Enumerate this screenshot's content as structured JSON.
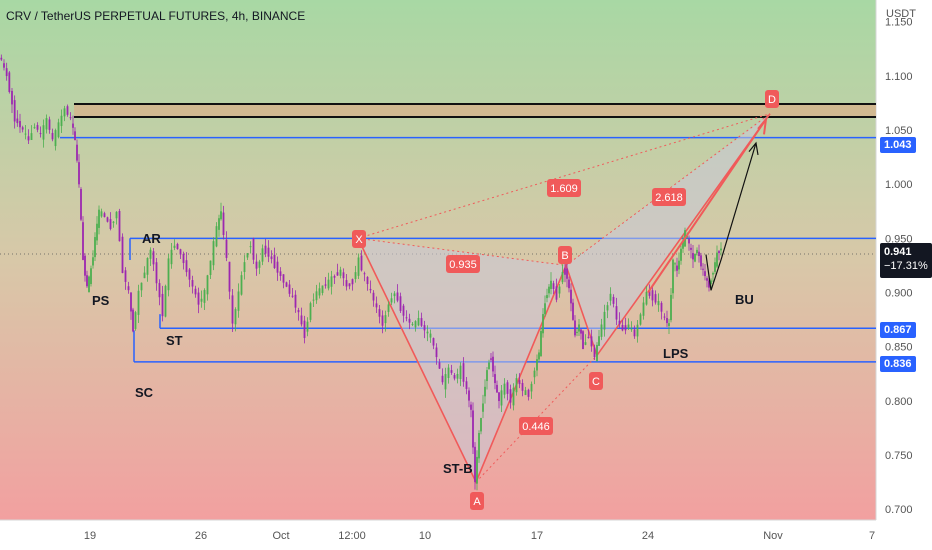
{
  "header": {
    "title": "CRV / TetherUS PERPETUAL FUTURES, 4h, BINANCE",
    "currency": "USDT"
  },
  "price_badges": {
    "level_1043": "1.043",
    "last_price": "0.941",
    "change": "−17.31%",
    "level_867": "0.867",
    "level_836": "0.836"
  },
  "colors": {
    "bg_top": "#a8d8a4",
    "bg_bottom": "#f2a0a0",
    "level_line": "#2962ff",
    "zone_fill": "#d8b08a",
    "pattern_line": "#f05a5a",
    "pattern_fill": "#c9c9d9",
    "candle_up": "#4caf50",
    "candle_down": "#9c27b0"
  },
  "annotations": {
    "wyckoff": [
      "PS",
      "AR",
      "ST",
      "SC",
      "ST-B",
      "LPS",
      "BU"
    ],
    "pattern_points": [
      "X",
      "A",
      "B",
      "C",
      "D"
    ],
    "ratios": [
      "0.935",
      "1.609",
      "2.618",
      "0.446"
    ]
  },
  "chart_data": {
    "type": "candlestick",
    "symbol": "CRV / TetherUS PERPETUAL FUTURES",
    "interval": "4h",
    "exchange": "BINANCE",
    "y_axis": {
      "unit": "USDT",
      "ylim": [
        0.69,
        1.17
      ],
      "tick_labels": [
        "1.150",
        "1.100",
        "1.050",
        "1.000",
        "0.950",
        "0.900",
        "0.850",
        "0.800",
        "0.750",
        "0.700"
      ]
    },
    "x_axis": {
      "tick_labels": [
        "19",
        "26",
        "Oct",
        "12:00",
        "10",
        "17",
        "24",
        "Nov",
        "7"
      ]
    },
    "horizontal_levels": [
      1.043,
      0.95,
      0.867,
      0.836
    ],
    "resistance_zone": [
      1.062,
      1.074
    ],
    "price_path": [
      [
        0,
        1.12
      ],
      [
        8,
        1.1
      ],
      [
        16,
        1.06
      ],
      [
        24,
        1.05
      ],
      [
        30,
        1.04
      ],
      [
        36,
        1.055
      ],
      [
        42,
        1.045
      ],
      [
        48,
        1.06
      ],
      [
        54,
        1.04
      ],
      [
        60,
        1.055
      ],
      [
        66,
        1.07
      ],
      [
        72,
        1.06
      ],
      [
        76,
        1.04
      ],
      [
        80,
        1.0
      ],
      [
        84,
        0.93
      ],
      [
        88,
        0.905
      ],
      [
        92,
        0.92
      ],
      [
        96,
        0.95
      ],
      [
        100,
        0.975
      ],
      [
        106,
        0.97
      ],
      [
        112,
        0.96
      ],
      [
        118,
        0.975
      ],
      [
        124,
        0.92
      ],
      [
        130,
        0.9
      ],
      [
        134,
        0.865
      ],
      [
        140,
        0.9
      ],
      [
        146,
        0.92
      ],
      [
        152,
        0.94
      ],
      [
        158,
        0.91
      ],
      [
        164,
        0.88
      ],
      [
        170,
        0.93
      ],
      [
        176,
        0.945
      ],
      [
        182,
        0.935
      ],
      [
        188,
        0.92
      ],
      [
        194,
        0.905
      ],
      [
        200,
        0.89
      ],
      [
        206,
        0.9
      ],
      [
        212,
        0.93
      ],
      [
        218,
        0.96
      ],
      [
        222,
        0.975
      ],
      [
        228,
        0.93
      ],
      [
        234,
        0.87
      ],
      [
        240,
        0.9
      ],
      [
        246,
        0.93
      ],
      [
        252,
        0.945
      ],
      [
        258,
        0.92
      ],
      [
        264,
        0.94
      ],
      [
        270,
        0.935
      ],
      [
        276,
        0.925
      ],
      [
        282,
        0.915
      ],
      [
        288,
        0.905
      ],
      [
        294,
        0.895
      ],
      [
        300,
        0.88
      ],
      [
        306,
        0.86
      ],
      [
        312,
        0.89
      ],
      [
        318,
        0.9
      ],
      [
        324,
        0.905
      ],
      [
        330,
        0.91
      ],
      [
        336,
        0.915
      ],
      [
        342,
        0.92
      ],
      [
        348,
        0.905
      ],
      [
        354,
        0.91
      ],
      [
        360,
        0.93
      ],
      [
        366,
        0.915
      ],
      [
        372,
        0.9
      ],
      [
        378,
        0.885
      ],
      [
        384,
        0.87
      ],
      [
        390,
        0.89
      ],
      [
        396,
        0.9
      ],
      [
        402,
        0.885
      ],
      [
        408,
        0.875
      ],
      [
        414,
        0.87
      ],
      [
        420,
        0.875
      ],
      [
        426,
        0.865
      ],
      [
        432,
        0.86
      ],
      [
        438,
        0.84
      ],
      [
        444,
        0.815
      ],
      [
        450,
        0.83
      ],
      [
        456,
        0.82
      ],
      [
        462,
        0.83
      ],
      [
        468,
        0.81
      ],
      [
        472,
        0.79
      ],
      [
        476,
        0.725
      ],
      [
        480,
        0.77
      ],
      [
        484,
        0.8
      ],
      [
        488,
        0.83
      ],
      [
        492,
        0.84
      ],
      [
        496,
        0.815
      ],
      [
        500,
        0.8
      ],
      [
        506,
        0.815
      ],
      [
        512,
        0.8
      ],
      [
        518,
        0.82
      ],
      [
        524,
        0.81
      ],
      [
        530,
        0.805
      ],
      [
        536,
        0.83
      ],
      [
        540,
        0.845
      ],
      [
        544,
        0.88
      ],
      [
        548,
        0.9
      ],
      [
        552,
        0.91
      ],
      [
        558,
        0.895
      ],
      [
        564,
        0.92
      ],
      [
        568,
        0.915
      ],
      [
        572,
        0.89
      ],
      [
        576,
        0.86
      ],
      [
        580,
        0.87
      ],
      [
        584,
        0.85
      ],
      [
        590,
        0.86
      ],
      [
        596,
        0.84
      ],
      [
        600,
        0.86
      ],
      [
        606,
        0.88
      ],
      [
        612,
        0.9
      ],
      [
        618,
        0.875
      ],
      [
        624,
        0.865
      ],
      [
        630,
        0.87
      ],
      [
        636,
        0.86
      ],
      [
        642,
        0.88
      ],
      [
        648,
        0.9
      ],
      [
        654,
        0.895
      ],
      [
        660,
        0.89
      ],
      [
        666,
        0.875
      ],
      [
        670,
        0.87
      ],
      [
        674,
        0.93
      ],
      [
        678,
        0.92
      ],
      [
        682,
        0.94
      ],
      [
        686,
        0.955
      ],
      [
        690,
        0.945
      ],
      [
        694,
        0.93
      ],
      [
        698,
        0.94
      ],
      [
        702,
        0.925
      ],
      [
        706,
        0.915
      ],
      [
        710,
        0.905
      ],
      [
        714,
        0.92
      ],
      [
        718,
        0.935
      ],
      [
        722,
        0.941
      ]
    ],
    "pattern": {
      "X": [
        358,
        0.95
      ],
      "A": [
        476,
        0.725
      ],
      "B": [
        566,
        0.925
      ],
      "C": [
        597,
        0.842
      ],
      "D": [
        770,
        1.065
      ]
    },
    "ratios": {
      "XB": 0.935,
      "XD": 1.609,
      "BD": 2.618,
      "AC": 0.446
    }
  }
}
